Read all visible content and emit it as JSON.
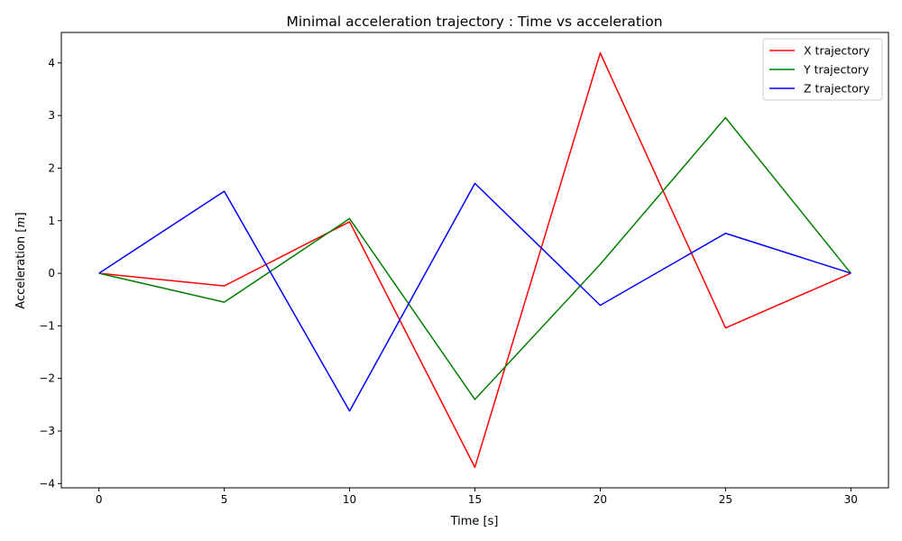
{
  "chart_data": {
    "type": "line",
    "title": "Minimal acceleration trajectory : Time vs acceleration",
    "xlabel": "Time [s]",
    "ylabel_main": "Acceleration [",
    "ylabel_unit": "m",
    "ylabel_close": "]",
    "x": [
      0,
      5,
      10,
      15,
      20,
      25,
      30
    ],
    "xlim": [
      -1.5,
      31.5
    ],
    "ylim": [
      -4.08,
      4.58
    ],
    "xticks": [
      0,
      5,
      10,
      15,
      20,
      25,
      30
    ],
    "yticks": [
      -4,
      -3,
      -2,
      -1,
      0,
      1,
      2,
      3,
      4
    ],
    "xtick_labels": [
      "0",
      "5",
      "10",
      "15",
      "20",
      "25",
      "30"
    ],
    "ytick_labels": [
      "−4",
      "−3",
      "−2",
      "−1",
      "0",
      "1",
      "2",
      "3",
      "4"
    ],
    "grid": false,
    "legend_position": "top-right",
    "series": [
      {
        "name": "X trajectory",
        "color": "#ff0000",
        "values": [
          0,
          -0.24,
          0.98,
          -3.69,
          4.19,
          -1.04,
          0
        ]
      },
      {
        "name": "Y trajectory",
        "color": "#008000",
        "values": [
          0,
          -0.55,
          1.04,
          -2.4,
          0.17,
          2.96,
          0
        ]
      },
      {
        "name": "Z trajectory",
        "color": "#0000ff",
        "values": [
          0,
          1.56,
          -2.62,
          1.71,
          -0.61,
          0.76,
          0
        ]
      }
    ]
  }
}
